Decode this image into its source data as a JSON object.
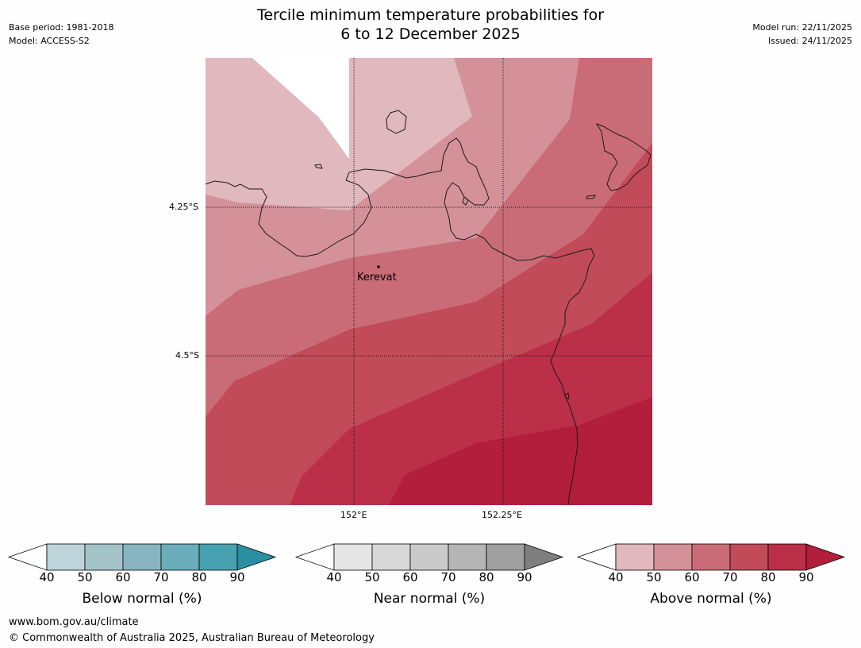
{
  "title": {
    "line1": "Tercile minimum temperature probabilities for",
    "line2": "6 to 12 December 2025"
  },
  "meta_left": {
    "base_period": "Base period: 1981-2018",
    "model": "Model: ACCESS-S2"
  },
  "meta_right": {
    "model_run": "Model run: 22/11/2025",
    "issued": "Issued: 24/11/2025"
  },
  "map": {
    "lat_labels": [
      "4.25°S",
      "4.5°S"
    ],
    "lon_labels": [
      "152°E",
      "152.25°E"
    ],
    "place": "Kerevat"
  },
  "colorbars": [
    {
      "title": "Below normal (%)",
      "ticks": [
        "40",
        "50",
        "60",
        "70",
        "80",
        "90"
      ],
      "colors": [
        "#bed4da",
        "#a5c4c9",
        "#88b5c1",
        "#6badbb",
        "#48a1b0",
        "#2a8fa0"
      ]
    },
    {
      "title": "Near normal (%)",
      "ticks": [
        "40",
        "50",
        "60",
        "70",
        "80",
        "90"
      ],
      "colors": [
        "#e6e6e6",
        "#d8d8d8",
        "#cacaca",
        "#b5b5b5",
        "#a0a0a0",
        "#7f7f7f"
      ]
    },
    {
      "title": "Above normal (%)",
      "ticks": [
        "40",
        "50",
        "60",
        "70",
        "80",
        "90"
      ],
      "colors": [
        "#e0b8bd",
        "#d59199",
        "#ca6c77",
        "#c24b59",
        "#bb3048",
        "#b21e3b"
      ]
    }
  ],
  "footer": {
    "url": "www.bom.gov.au/climate",
    "copyright": "© Commonwealth of Australia 2025, Australian Bureau of Meteorology"
  }
}
